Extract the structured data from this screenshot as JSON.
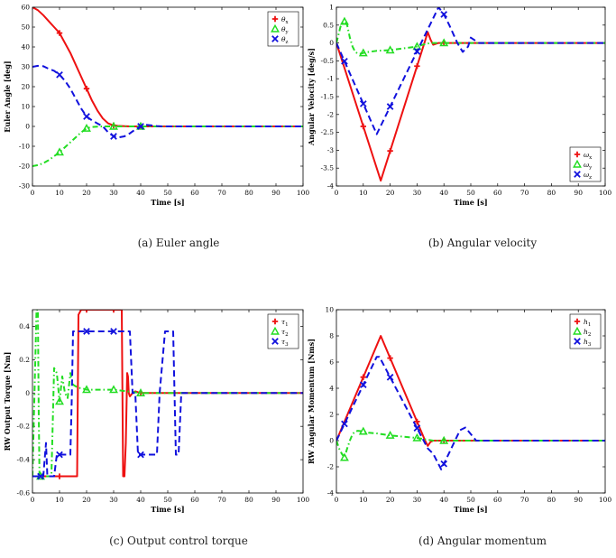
{
  "colors": {
    "series1": "#ee1111",
    "series2": "#22dd22",
    "series3": "#1111dd",
    "axis": "#000000",
    "grid": "#cccccc"
  },
  "chart_data": [
    {
      "type": "line",
      "caption": "(a) Euler angle",
      "xlabel": "Time [s]",
      "ylabel": "Euler Angle [deg]",
      "xlim": [
        0,
        100
      ],
      "ylim": [
        -30,
        60
      ],
      "xticks": [
        "0",
        "10",
        "20",
        "30",
        "40",
        "50",
        "60",
        "70",
        "80",
        "90",
        "100"
      ],
      "yticks": [
        "-30",
        "-20",
        "-10",
        "0",
        "10",
        "20",
        "30",
        "40",
        "50",
        "60"
      ],
      "grid": false,
      "legend": "top-right",
      "series": [
        {
          "name": "θx",
          "base": "θ",
          "sub": "x",
          "style": "solid",
          "marker": "+",
          "x": [
            0,
            2,
            4,
            6,
            8,
            10,
            12,
            14,
            16,
            18,
            20,
            22,
            24,
            26,
            28,
            30,
            32,
            34,
            36,
            38,
            40,
            45,
            50,
            60,
            70,
            80,
            90,
            100
          ],
          "y": [
            60,
            58.5,
            56,
            53,
            50,
            47,
            42,
            37,
            31,
            25,
            19,
            13,
            8,
            4,
            1.5,
            0.5,
            0.2,
            0.1,
            0,
            0,
            0,
            0,
            0,
            0,
            0,
            0,
            0,
            0
          ]
        },
        {
          "name": "θy",
          "base": "θ",
          "sub": "y",
          "style": "dashdot",
          "marker": "triangle",
          "x": [
            0,
            2,
            4,
            6,
            8,
            10,
            12,
            14,
            16,
            18,
            20,
            22,
            24,
            26,
            28,
            30,
            32,
            34,
            36,
            38,
            40,
            45,
            50,
            60,
            70,
            80,
            90,
            100
          ],
          "y": [
            -20,
            -19.5,
            -18.5,
            -17,
            -15,
            -13,
            -10.5,
            -8,
            -5.5,
            -3,
            -1,
            -0.3,
            -0.1,
            0,
            0,
            0,
            0,
            0,
            0,
            0,
            0,
            0,
            0,
            0,
            0,
            0,
            0,
            0
          ]
        },
        {
          "name": "θz",
          "base": "θ",
          "sub": "z",
          "style": "dashed",
          "marker": "x",
          "x": [
            0,
            2,
            4,
            6,
            8,
            10,
            12,
            14,
            16,
            18,
            20,
            22,
            24,
            26,
            28,
            30,
            32,
            34,
            36,
            38,
            40,
            42,
            44,
            46,
            48,
            50,
            55,
            60,
            70,
            80,
            90,
            100
          ],
          "y": [
            30,
            30.5,
            30.3,
            29,
            28,
            26,
            23,
            19,
            14,
            9,
            5,
            3,
            1.5,
            0,
            -3,
            -5,
            -5.5,
            -5,
            -3.5,
            -1.5,
            0,
            0.8,
            0.5,
            0.2,
            0,
            0,
            0,
            0,
            0,
            0,
            0,
            0
          ]
        }
      ],
      "marker_x": [
        [
          10,
          20,
          30,
          40
        ],
        [
          10,
          20,
          30,
          40
        ],
        [
          10,
          20,
          30,
          40
        ]
      ]
    },
    {
      "type": "line",
      "caption": "(b) Angular velocity",
      "xlabel": "Time [s]",
      "ylabel": "Angular Velocity [deg/s]",
      "xlim": [
        0,
        100
      ],
      "ylim": [
        -4,
        1
      ],
      "xticks": [
        "0",
        "10",
        "20",
        "30",
        "40",
        "50",
        "60",
        "70",
        "80",
        "90",
        "100"
      ],
      "yticks": [
        "-4",
        "-3.5",
        "-3",
        "-2.5",
        "-2",
        "-1.5",
        "-1",
        "-0.5",
        "0",
        "0.5",
        "1"
      ],
      "grid": false,
      "legend": "bottom-right",
      "series": [
        {
          "name": "ωx",
          "base": "ω",
          "sub": "x",
          "style": "solid",
          "marker": "+",
          "x": [
            0,
            16.5,
            34,
            35,
            36,
            38,
            40,
            45,
            50,
            60,
            70,
            80,
            90,
            100
          ],
          "y": [
            0,
            -3.85,
            0.3,
            0.1,
            -0.05,
            0,
            0,
            0,
            0,
            0,
            0,
            0,
            0,
            0
          ]
        },
        {
          "name": "ωy",
          "base": "ω",
          "sub": "y",
          "style": "dashdot",
          "marker": "triangle",
          "x": [
            0,
            1.5,
            3,
            4,
            5,
            6,
            7,
            8,
            9,
            10,
            12,
            15,
            20,
            25,
            30,
            32,
            35,
            40,
            50,
            60,
            70,
            80,
            90,
            100
          ],
          "y": [
            0,
            0.45,
            0.6,
            0.5,
            0.15,
            -0.1,
            -0.25,
            -0.3,
            -0.3,
            -0.28,
            -0.25,
            -0.22,
            -0.2,
            -0.15,
            -0.1,
            -0.05,
            0,
            0,
            0,
            0,
            0,
            0,
            0,
            0
          ]
        },
        {
          "name": "ωz",
          "base": "ω",
          "sub": "z",
          "style": "dashed",
          "marker": "x",
          "x": [
            0,
            15,
            38,
            40,
            42,
            45,
            47,
            49,
            50,
            52,
            53,
            55,
            60,
            70,
            80,
            90,
            100
          ],
          "y": [
            0,
            -2.55,
            1,
            0.8,
            0.5,
            0,
            -0.25,
            -0.1,
            0.15,
            0.05,
            0,
            0,
            0,
            0,
            0,
            0,
            0
          ]
        }
      ],
      "marker_x": [
        [
          10,
          20,
          30,
          40
        ],
        [
          3,
          10,
          20,
          30,
          40
        ],
        [
          3,
          10,
          20,
          30,
          40
        ]
      ]
    },
    {
      "type": "line",
      "caption": "(c) Output control torque",
      "xlabel": "Time [s]",
      "ylabel": "RW Output Torque [Nm]",
      "xlim": [
        0,
        100
      ],
      "ylim": [
        -0.6,
        0.5
      ],
      "xticks": [
        "0",
        "10",
        "20",
        "30",
        "40",
        "50",
        "60",
        "70",
        "80",
        "90",
        "100"
      ],
      "yticks": [
        "-0.6",
        "-0.4",
        "-0.2",
        "0",
        "0.2",
        "0.4"
      ],
      "grid": false,
      "legend": "top-right",
      "series": [
        {
          "name": "τ1",
          "base": "τ",
          "sub": "1",
          "style": "solid",
          "marker": "+",
          "x": [
            0,
            16.5,
            17,
            18,
            33,
            33.5,
            34,
            34.5,
            35,
            35.3,
            35.6,
            36,
            37,
            38,
            40,
            50,
            60,
            70,
            80,
            90,
            100
          ],
          "y": [
            -0.5,
            -0.5,
            0.47,
            0.5,
            0.5,
            -0.5,
            -0.5,
            -0.3,
            0.12,
            0.1,
            0,
            -0.02,
            0,
            0.01,
            0,
            0,
            0,
            0,
            0,
            0,
            0
          ]
        },
        {
          "name": "τ2",
          "base": "τ",
          "sub": "2",
          "style": "dashdot",
          "marker": "triangle",
          "x": [
            0,
            1.5,
            2,
            2.3,
            2.6,
            3,
            7,
            8,
            9,
            10,
            11,
            12,
            13,
            14,
            15,
            16,
            17,
            18,
            20,
            25,
            30,
            35,
            40,
            50,
            60,
            70,
            80,
            90,
            100
          ],
          "y": [
            -0.5,
            0.5,
            0.5,
            -0.1,
            -0.5,
            -0.5,
            -0.5,
            0.15,
            0.12,
            -0.05,
            0.1,
            0,
            -0.03,
            0.12,
            0.05,
            0.04,
            0.03,
            0.03,
            0.02,
            0.02,
            0.02,
            0.01,
            0,
            0,
            0,
            0,
            0,
            0,
            0
          ]
        },
        {
          "name": "τ3",
          "base": "τ",
          "sub": "3",
          "style": "dashed",
          "marker": "x",
          "x": [
            0,
            4,
            5,
            5.5,
            8,
            9,
            9.5,
            14,
            14.5,
            15,
            15.5,
            16,
            17,
            35,
            36,
            37,
            38,
            39,
            40,
            46,
            47,
            49,
            50,
            52,
            53,
            54,
            55,
            60,
            70,
            80,
            90,
            100
          ],
          "y": [
            -0.5,
            -0.5,
            -0.3,
            -0.5,
            -0.5,
            -0.37,
            -0.37,
            -0.37,
            -0.05,
            0.37,
            0.37,
            0.37,
            0.37,
            0.37,
            0.37,
            0,
            0,
            -0.37,
            -0.37,
            -0.37,
            0,
            0.37,
            0.37,
            0.37,
            -0.37,
            -0.37,
            0,
            0,
            0,
            0,
            0,
            0
          ]
        }
      ],
      "marker_x": [
        [
          10,
          20,
          30,
          40
        ],
        [
          3,
          10,
          20,
          30,
          40
        ],
        [
          3,
          10,
          20,
          30,
          40
        ]
      ]
    },
    {
      "type": "line",
      "caption": "(d) Angular momentum",
      "xlabel": "Time [s]",
      "ylabel": "RW Angular Momentum [Nms]",
      "xlim": [
        0,
        100
      ],
      "ylim": [
        -4,
        10
      ],
      "xticks": [
        "0",
        "10",
        "20",
        "30",
        "40",
        "50",
        "60",
        "70",
        "80",
        "90",
        "100"
      ],
      "yticks": [
        "-4",
        "-2",
        "0",
        "2",
        "4",
        "6",
        "8",
        "10"
      ],
      "grid": false,
      "legend": "top-right",
      "series": [
        {
          "name": "h1",
          "base": "h",
          "sub": "1",
          "style": "solid",
          "marker": "+",
          "x": [
            0,
            16.5,
            33,
            34,
            35,
            36,
            40,
            50,
            60,
            70,
            80,
            90,
            100
          ],
          "y": [
            0,
            8,
            0,
            -0.4,
            -0.1,
            0,
            0,
            0,
            0,
            0,
            0,
            0,
            0
          ]
        },
        {
          "name": "h2",
          "base": "h",
          "sub": "2",
          "style": "dashdot",
          "marker": "triangle",
          "x": [
            0,
            1,
            2,
            3,
            4,
            5,
            6,
            7,
            8,
            10,
            12,
            15,
            20,
            25,
            30,
            33,
            36,
            40,
            50,
            60,
            70,
            80,
            90,
            100
          ],
          "y": [
            0,
            -0.6,
            -1,
            -1.3,
            -0.6,
            0,
            0.5,
            0.7,
            0.75,
            0.7,
            0.6,
            0.55,
            0.4,
            0.3,
            0.2,
            0.1,
            0,
            0,
            0,
            0,
            0,
            0,
            0,
            0
          ]
        },
        {
          "name": "h3",
          "base": "h",
          "sub": "3",
          "style": "dashed",
          "marker": "x",
          "x": [
            0,
            15,
            16,
            34,
            36,
            39,
            46,
            48,
            50,
            52,
            54,
            60,
            70,
            80,
            90,
            100
          ],
          "y": [
            0,
            6.4,
            6.4,
            -0.6,
            -1,
            -2.2,
            0.8,
            1,
            0.5,
            0,
            0,
            0,
            0,
            0,
            0,
            0
          ]
        }
      ],
      "marker_x": [
        [
          10,
          20,
          30,
          40
        ],
        [
          3,
          10,
          20,
          30,
          40
        ],
        [
          3,
          10,
          20,
          30,
          40
        ]
      ]
    }
  ]
}
